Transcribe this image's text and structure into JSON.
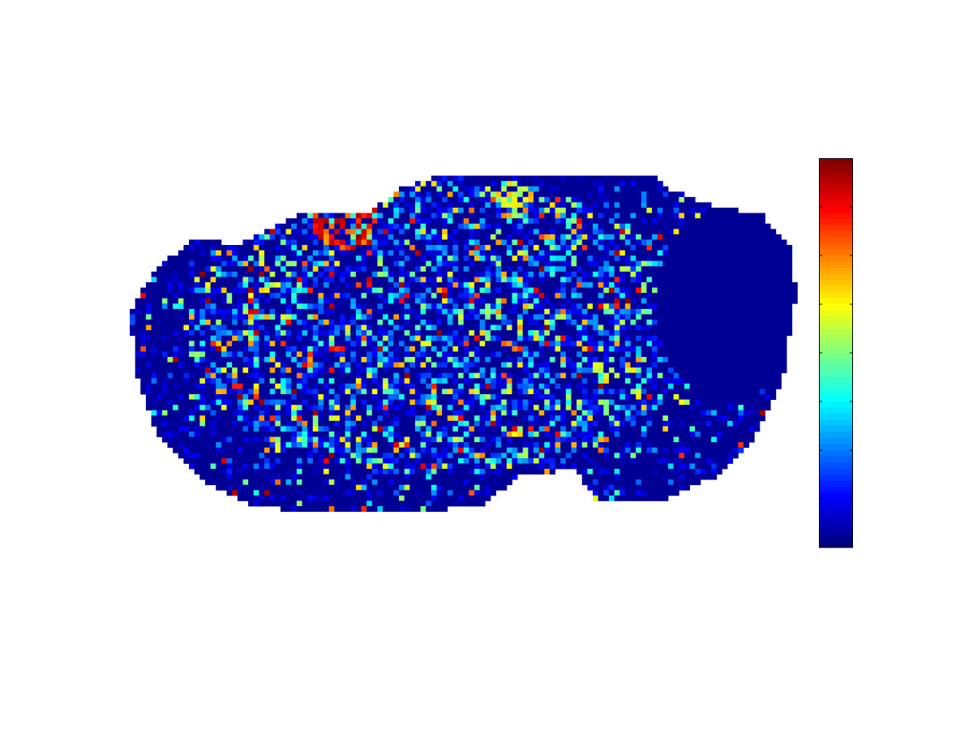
{
  "chart_data": {
    "type": "heatmap",
    "title": "",
    "xlabel": "",
    "ylabel": "",
    "axes_visible": false,
    "grid": false,
    "colormap": "jet",
    "grid_size": {
      "cols": 125,
      "rows": 70
    },
    "value_range": [
      0,
      1
    ],
    "background_value": 0.02,
    "colorbar": {
      "placement": "right",
      "tick_labels": [],
      "tick_count": 7
    },
    "mask_outline_percent": [
      [
        16,
        20
      ],
      [
        25,
        12
      ],
      [
        36,
        11
      ],
      [
        40,
        5
      ],
      [
        47,
        1
      ],
      [
        60,
        2
      ],
      [
        78,
        2
      ],
      [
        80,
        5
      ],
      [
        86,
        9
      ],
      [
        94,
        12
      ],
      [
        98,
        20
      ],
      [
        99,
        33
      ],
      [
        97,
        56
      ],
      [
        92,
        74
      ],
      [
        87,
        82
      ],
      [
        80,
        88
      ],
      [
        69,
        88
      ],
      [
        66,
        80
      ],
      [
        58,
        82
      ],
      [
        52,
        90
      ],
      [
        38,
        92
      ],
      [
        26,
        92
      ],
      [
        17,
        89
      ],
      [
        10,
        82
      ],
      [
        4,
        70
      ],
      [
        1,
        55
      ],
      [
        0,
        38
      ],
      [
        4,
        26
      ],
      [
        10,
        18
      ]
    ],
    "cerebellum_region_percent": {
      "cx": 89,
      "cy": 36,
      "rx": 11,
      "ry": 26
    },
    "activity_region_percent": {
      "cx": 46,
      "cy": 42,
      "rx": 38,
      "ry": 40
    },
    "hotspots_percent": [
      {
        "cx": 32,
        "cy": 13,
        "r": 5,
        "level": 0.95
      },
      {
        "cx": 36,
        "cy": 6,
        "r": 3,
        "level": 0.8
      },
      {
        "cx": 57,
        "cy": 8,
        "r": 3,
        "level": 0.75
      }
    ]
  }
}
